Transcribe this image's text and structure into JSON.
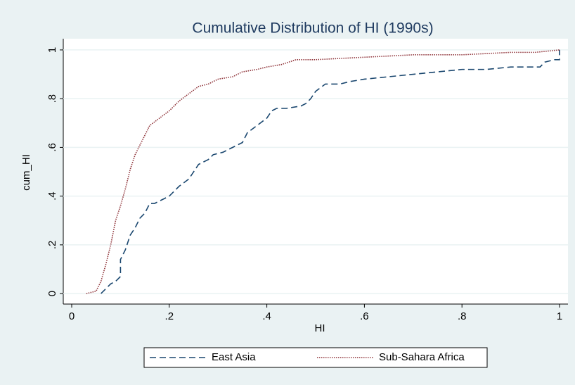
{
  "chart_data": {
    "type": "line",
    "title": "Cumulative Distribution of HI (1990s)",
    "x_label": "HI",
    "y_label": "cum_HI",
    "xlim": [
      -0.0173,
      1.0173
    ],
    "xticks": [
      0,
      {
        "value": 0.2,
        "label": ".2"
      },
      {
        "value": 0.4,
        "label": ".4"
      },
      {
        "value": 0.6,
        "label": ".6"
      },
      {
        "value": 0.8,
        "label": ".8"
      },
      1
    ],
    "ylim": [
      -0.043,
      1.046
    ],
    "yticks": [
      0,
      {
        "value": 0.2,
        "label": ".2"
      },
      {
        "value": 0.4,
        "label": ".4"
      },
      {
        "value": 0.6,
        "label": ".6"
      },
      {
        "value": 0.8,
        "label": ".8"
      },
      1
    ],
    "grid": true,
    "series": [
      {
        "name": "East Asia",
        "color": "#1a476f",
        "dash": "dashed",
        "x": [
          0.06,
          0.07,
          0.08,
          0.09,
          0.1,
          0.1,
          0.11,
          0.12,
          0.13,
          0.14,
          0.15,
          0.16,
          0.17,
          0.19,
          0.2,
          0.21,
          0.22,
          0.24,
          0.25,
          0.26,
          0.28,
          0.29,
          0.31,
          0.33,
          0.35,
          0.36,
          0.38,
          0.4,
          0.41,
          0.42,
          0.44,
          0.47,
          0.48,
          0.49,
          0.5,
          0.52,
          0.55,
          0.57,
          0.6,
          0.65,
          0.7,
          0.75,
          0.8,
          0.85,
          0.9,
          0.96,
          0.97,
          0.99,
          1.0,
          1.0
        ],
        "values": [
          0,
          0.02,
          0.04,
          0.05,
          0.07,
          0.14,
          0.18,
          0.24,
          0.27,
          0.31,
          0.33,
          0.37,
          0.37,
          0.39,
          0.4,
          0.42,
          0.44,
          0.47,
          0.5,
          0.53,
          0.55,
          0.57,
          0.58,
          0.6,
          0.62,
          0.66,
          0.69,
          0.72,
          0.75,
          0.76,
          0.76,
          0.77,
          0.78,
          0.8,
          0.83,
          0.86,
          0.86,
          0.87,
          0.88,
          0.89,
          0.9,
          0.91,
          0.92,
          0.92,
          0.93,
          0.93,
          0.95,
          0.96,
          0.96,
          1.0
        ]
      },
      {
        "name": "Sub-Sahara Africa",
        "color": "#90353b",
        "dash": "dotted",
        "x": [
          0.03,
          0.05,
          0.06,
          0.07,
          0.08,
          0.09,
          0.1,
          0.11,
          0.12,
          0.13,
          0.14,
          0.15,
          0.16,
          0.18,
          0.2,
          0.22,
          0.24,
          0.26,
          0.28,
          0.3,
          0.33,
          0.35,
          0.38,
          0.4,
          0.43,
          0.46,
          0.5,
          0.55,
          0.6,
          0.65,
          0.7,
          0.75,
          0.8,
          0.85,
          0.9,
          0.95,
          1.0
        ],
        "values": [
          0,
          0.01,
          0.05,
          0.12,
          0.2,
          0.3,
          0.36,
          0.43,
          0.51,
          0.57,
          0.61,
          0.65,
          0.69,
          0.72,
          0.75,
          0.79,
          0.82,
          0.85,
          0.86,
          0.88,
          0.89,
          0.91,
          0.92,
          0.93,
          0.94,
          0.96,
          0.96,
          0.965,
          0.97,
          0.975,
          0.98,
          0.98,
          0.98,
          0.985,
          0.99,
          0.99,
          1.0
        ]
      }
    ]
  }
}
